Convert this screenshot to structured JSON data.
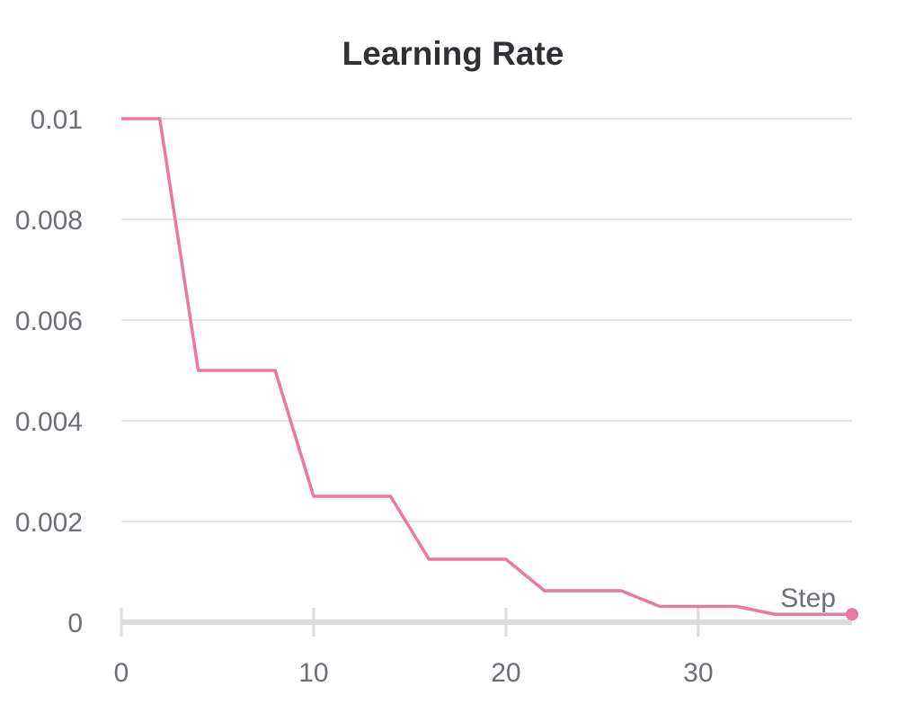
{
  "chart_data": {
    "type": "line",
    "title": "Learning Rate",
    "xlabel": "Step",
    "ylabel": "",
    "x_ticks": [
      0,
      10,
      20,
      30
    ],
    "y_ticks": [
      0,
      0.002,
      0.004,
      0.006,
      0.008,
      0.01
    ],
    "y_tick_labels": [
      "0",
      "0.002",
      "0.004",
      "0.006",
      "0.008",
      "0.01"
    ],
    "x_tick_labels": [
      "0",
      "10",
      "20",
      "30"
    ],
    "xlim": [
      0,
      38
    ],
    "ylim": [
      0,
      0.01
    ],
    "grid": true,
    "legend": "none",
    "series": [
      {
        "color": "#e879a3",
        "x": [
          0,
          2,
          4,
          8,
          10,
          14,
          16,
          20,
          22,
          26,
          28,
          32,
          34,
          38
        ],
        "y": [
          0.01,
          0.01,
          0.005,
          0.005,
          0.0025,
          0.0025,
          0.00125,
          0.00125,
          0.000625,
          0.000625,
          0.0003125,
          0.0003125,
          0.00015625,
          0.00015625
        ]
      }
    ]
  }
}
